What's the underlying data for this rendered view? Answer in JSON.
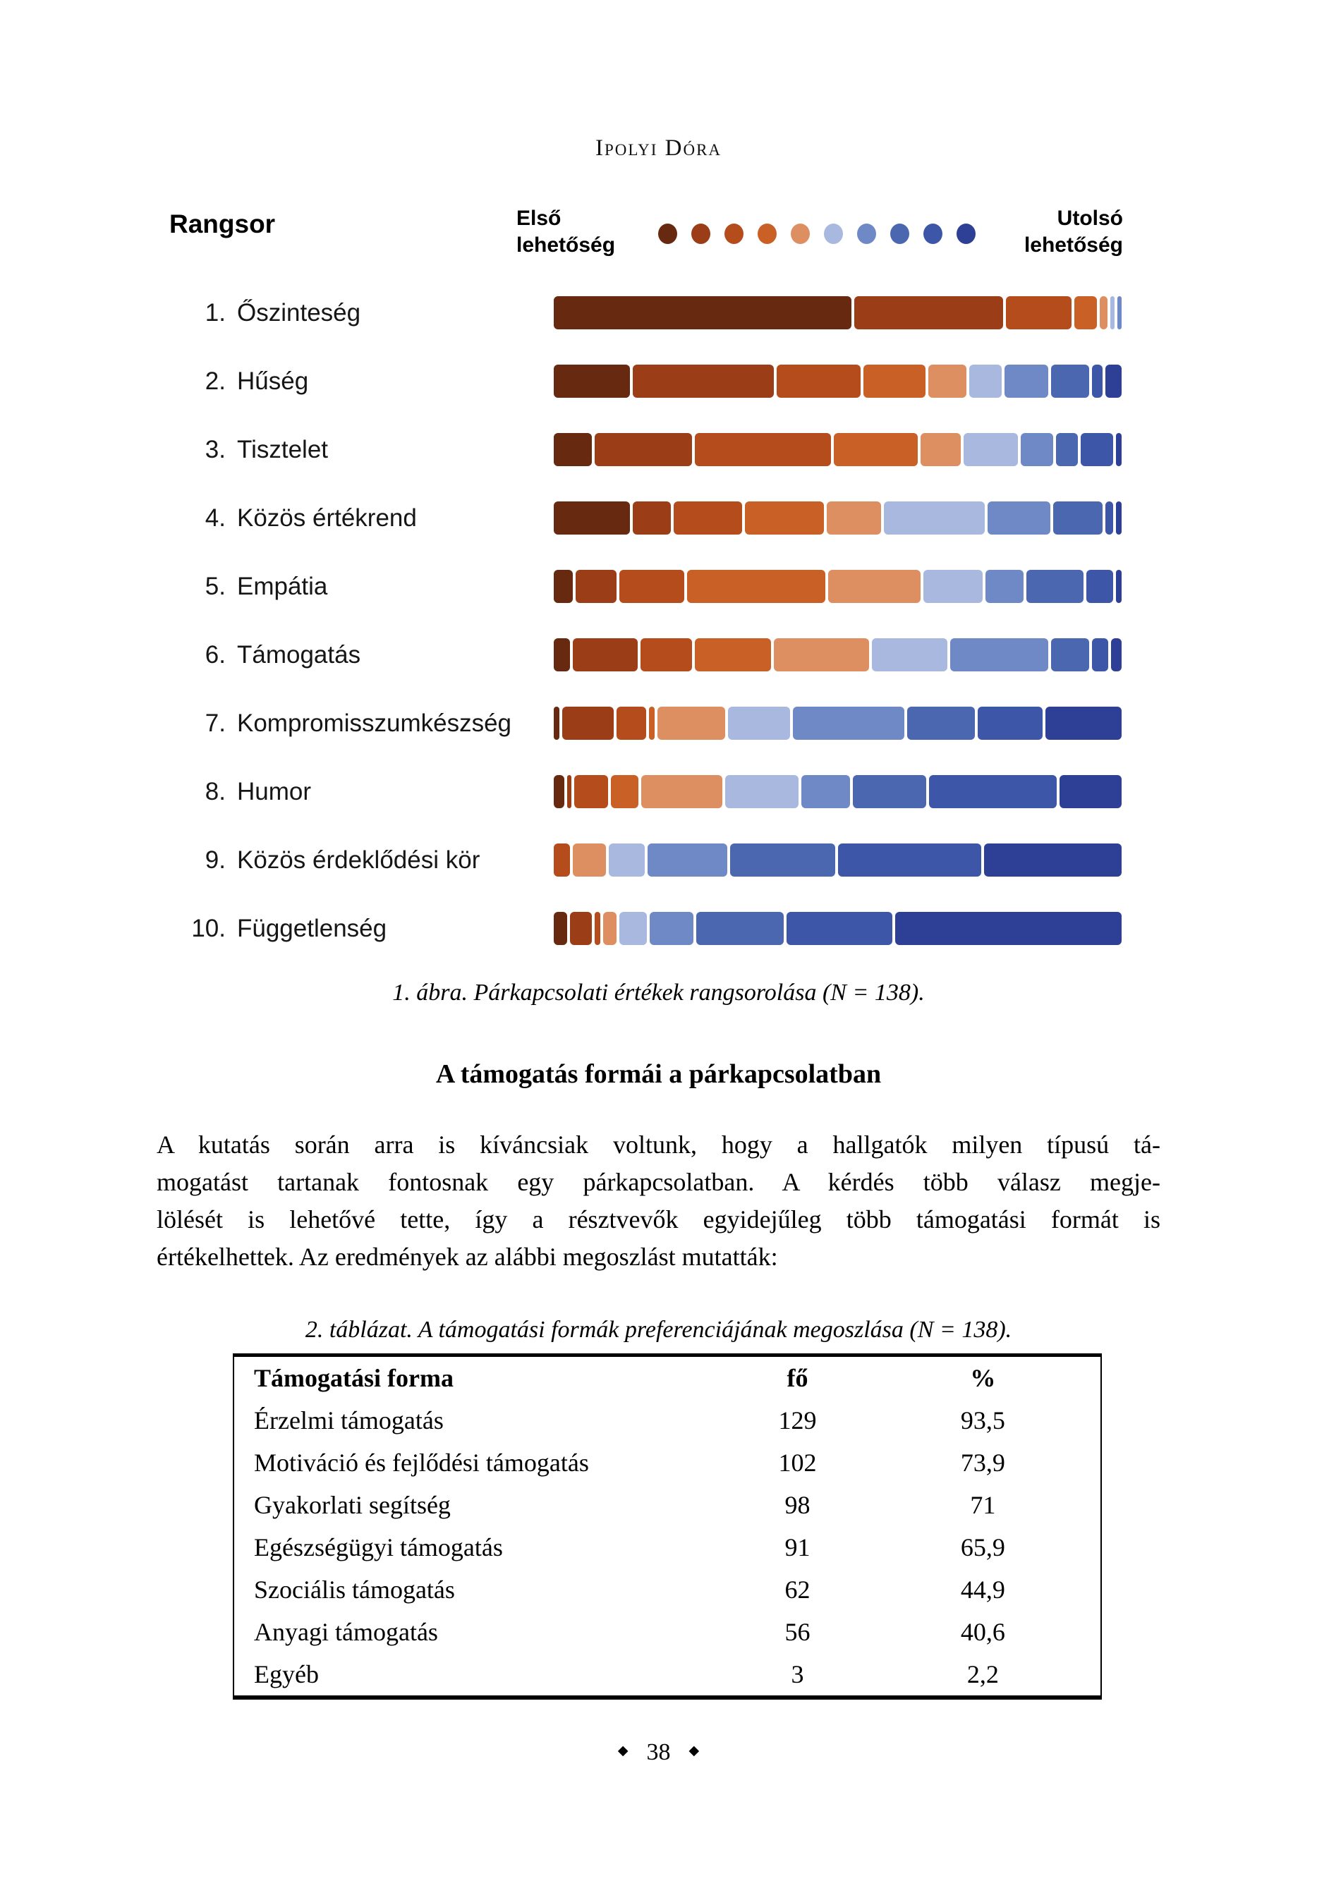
{
  "page": {
    "author_header": "Ipolyi Dóra",
    "footer": {
      "ornament_left": "◆",
      "page_number": "38",
      "ornament_right": "◆"
    }
  },
  "figure": {
    "title": "Rangsor",
    "caption": "1. ábra. Párkapcsolati értékek rangsorolása (N = 138)."
  },
  "chart_data": {
    "type": "bar",
    "subtype": "horizontal-100pct-stacked-ranking",
    "legend": {
      "first": "Első\nlehetőség",
      "last": "Utolsó\nlehetőség",
      "position": "top"
    },
    "palette": [
      "#67290f",
      "#9b3d16",
      "#b44c1c",
      "#c96127",
      "#dd8f62",
      "#a9b8df",
      "#6e89c6",
      "#4b67b0",
      "#3d56a8",
      "#2e3f96"
    ],
    "rank_positions": [
      1,
      2,
      3,
      4,
      5,
      6,
      7,
      8,
      9,
      10
    ],
    "xlim": [
      0,
      100
    ],
    "grid": false,
    "rows": [
      {
        "rank": "1.",
        "label": "Őszinteség",
        "values": [
          54,
          27,
          12,
          4,
          1.4,
          0.8,
          0.8,
          0,
          0,
          0
        ]
      },
      {
        "rank": "2.",
        "label": "Hűség",
        "values": [
          14,
          26,
          15.5,
          11.5,
          7,
          6,
          8,
          7,
          2,
          3
        ]
      },
      {
        "rank": "3.",
        "label": "Tisztelet",
        "values": [
          7,
          18,
          25,
          15.5,
          7.5,
          10,
          6,
          4,
          6,
          1
        ]
      },
      {
        "rank": "4.",
        "label": "Közös értékrend",
        "values": [
          14,
          7,
          12.5,
          14.5,
          10,
          18.5,
          11.5,
          9,
          1.5,
          1
        ]
      },
      {
        "rank": "5.",
        "label": "Empátia",
        "values": [
          3.5,
          7.5,
          12,
          25.5,
          17,
          11,
          7,
          10.5,
          5,
          1
        ]
      },
      {
        "rank": "6.",
        "label": "Támogatás",
        "values": [
          3,
          12,
          9.5,
          14,
          17.5,
          14,
          18,
          7,
          3,
          2
        ]
      },
      {
        "rank": "7.",
        "label": "Kompromisszumkészség",
        "values": [
          1,
          9.5,
          5.5,
          1,
          12.5,
          11.5,
          20.5,
          12.5,
          12,
          14
        ]
      },
      {
        "rank": "8.",
        "label": "Humor",
        "values": [
          2,
          0.7,
          6.3,
          5,
          15,
          13.5,
          9,
          13.5,
          23.5,
          11.5
        ]
      },
      {
        "rank": "9.",
        "label": "Közös érdeklődési kör",
        "values": [
          0,
          0,
          3,
          0,
          6,
          6.5,
          14.5,
          19,
          26,
          25
        ]
      },
      {
        "rank": "10.",
        "label": "Függetlenség",
        "values": [
          2.5,
          4,
          1,
          0,
          2.5,
          5,
          8,
          16,
          19.5,
          41.5
        ]
      }
    ]
  },
  "section": {
    "heading": "A támogatás formái a párkapcsolatban",
    "paragraph_lines": [
      "A kutatás során arra is kíváncsiak voltunk, hogy a hallgatók milyen típusú tá-",
      "mogatást tartanak fontosnak egy párkapcsolatban. A kérdés több válasz megje-",
      "lölését is lehetővé tette, így a résztvevők egyidejűleg több támogatási formát is",
      "értékelhettek. Az eredmények az alábbi megoszlást mutatták:"
    ]
  },
  "table": {
    "caption": "2. táblázat. A támogatási formák preferenciájának megoszlása (N = 138).",
    "columns": [
      "Támogatási forma",
      "fő",
      "%"
    ],
    "rows": [
      [
        "Érzelmi támogatás",
        "129",
        "93,5"
      ],
      [
        "Motiváció és fejlődési támogatás",
        "102",
        "73,9"
      ],
      [
        "Gyakorlati segítség",
        "98",
        "71"
      ],
      [
        "Egészségügyi támogatás",
        "91",
        "65,9"
      ],
      [
        "Szociális támogatás",
        "62",
        "44,9"
      ],
      [
        "Anyagi támogatás",
        "56",
        "40,6"
      ],
      [
        "Egyéb",
        "3",
        "2,2"
      ]
    ]
  }
}
